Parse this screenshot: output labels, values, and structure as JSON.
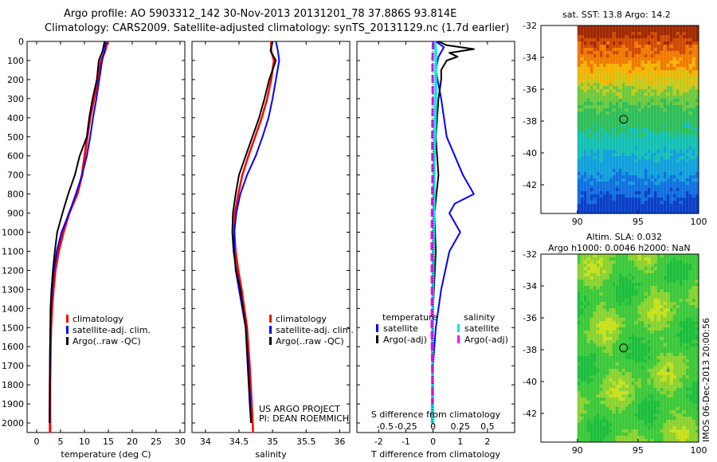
{
  "header": {
    "line1": "Argo profile: AO 5903312_142 30-Nov-2013 20131201_78 37.886S 93.814E",
    "line2": "Climatology: CARS2009. Satellite-adjusted climatology: synTS_20131129.nc (1.7d earlier)"
  },
  "credits": {
    "line1": "US ARGO PROJECT",
    "line2": "PI: DEAN ROEMMICH"
  },
  "side_stamp": "IMOS 06-Dec-2013 20:00:56",
  "map_sst": {
    "title": "sat. SST: 13.8 Argo: 14.2"
  },
  "map_sla": {
    "title1": "Altim. SLA: 0.032",
    "title2": "Argo h1000: 0.0046 h2000: NaN"
  },
  "legend_profile": [
    "climatology",
    "satellite-adj. clim.",
    "Argo(..raw -QC)"
  ],
  "legend_diff": {
    "temperature_heading": "temperature",
    "salinity_heading": "salinity",
    "items": [
      "satellite",
      "Argo(-adj)",
      "satellite",
      "Argo(-adj)"
    ]
  },
  "colors": {
    "climatology": "#ff0000",
    "satellite": "#0000ff",
    "argo": "#000000",
    "sal_satellite": "#00e5e5",
    "sal_argo": "#ff00ff"
  },
  "chart_data": [
    {
      "type": "line",
      "xlabel": "temperature (deg C)",
      "ylabel": "",
      "xlim": [
        -2,
        31
      ],
      "ylim": [
        2050,
        0
      ],
      "xticks": [
        "0",
        "5",
        "10",
        "15",
        "20",
        "25",
        "30"
      ],
      "yticks": [
        "0",
        "100",
        "200",
        "300",
        "400",
        "500",
        "600",
        "700",
        "800",
        "900",
        "1000",
        "1100",
        "1200",
        "1300",
        "1400",
        "1500",
        "1600",
        "1700",
        "1800",
        "1900",
        "2000"
      ],
      "series": [
        {
          "name": "climatology",
          "x": [
            14.8,
            14.3,
            13.5,
            12.8,
            12.0,
            11.2,
            10.6,
            9.5,
            8.5,
            6.8,
            5.6,
            4.6,
            3.9,
            3.5,
            3.2,
            3.0,
            2.9,
            2.8,
            2.8,
            2.8
          ],
          "y": [
            0,
            50,
            100,
            200,
            300,
            400,
            500,
            700,
            800,
            900,
            1000,
            1100,
            1200,
            1300,
            1400,
            1500,
            1600,
            1800,
            2000,
            2050
          ]
        },
        {
          "name": "satellite-adj. clim.",
          "x": [
            14.5,
            14.2,
            13.7,
            13.1,
            12.5,
            11.8,
            11.2,
            10.5,
            9.5,
            8.2,
            6.8,
            5.2,
            4.2,
            3.6,
            3.2,
            3.0,
            2.9,
            2.8,
            2.7
          ],
          "y": [
            0,
            50,
            100,
            200,
            300,
            400,
            500,
            600,
            700,
            800,
            900,
            1000,
            1100,
            1200,
            1300,
            1400,
            1500,
            1700,
            2000
          ]
        },
        {
          "name": "Argo(..raw -QC)",
          "x": [
            14.2,
            13.8,
            13.0,
            12.6,
            11.7,
            11.0,
            10.5,
            9.0,
            8.0,
            6.6,
            5.4,
            4.3,
            3.8,
            3.4,
            3.1,
            2.9,
            2.8,
            2.7
          ],
          "y": [
            0,
            50,
            100,
            200,
            300,
            400,
            500,
            600,
            700,
            800,
            900,
            1000,
            1100,
            1200,
            1300,
            1400,
            1600,
            2000
          ]
        }
      ]
    },
    {
      "type": "line",
      "xlabel": "salinity",
      "xlim": [
        33.8,
        36.15
      ],
      "ylim": [
        2050,
        0
      ],
      "xticks": [
        "34",
        "34.5",
        "35",
        "35.5",
        "36"
      ],
      "series": [
        {
          "name": "climatology",
          "x": [
            34.98,
            34.98,
            35.02,
            34.98,
            34.92,
            34.84,
            34.74,
            34.64,
            34.55,
            34.49,
            34.44,
            34.43,
            34.45,
            34.49,
            34.54,
            34.58,
            34.62,
            34.66,
            34.69,
            34.71
          ],
          "y": [
            0,
            50,
            100,
            200,
            300,
            400,
            500,
            600,
            700,
            800,
            900,
            1000,
            1100,
            1200,
            1300,
            1400,
            1500,
            1700,
            1900,
            2050
          ]
        },
        {
          "name": "satellite-adj. clim.",
          "x": [
            35.05,
            35.08,
            35.1,
            35.05,
            35.0,
            34.94,
            34.85,
            34.75,
            34.62,
            34.52,
            34.46,
            34.43,
            34.43,
            34.45,
            34.5,
            34.55,
            34.6,
            34.64,
            34.67,
            34.68
          ],
          "y": [
            0,
            50,
            100,
            200,
            300,
            400,
            500,
            600,
            700,
            800,
            900,
            1000,
            1100,
            1200,
            1300,
            1400,
            1500,
            1700,
            1900,
            2000
          ]
        },
        {
          "name": "Argo(..raw -QC)",
          "x": [
            35.0,
            34.97,
            35.05,
            34.95,
            34.88,
            34.8,
            34.7,
            34.6,
            34.5,
            34.45,
            34.41,
            34.4,
            34.42,
            34.46,
            34.52,
            34.56,
            34.6,
            34.63,
            34.66,
            34.68
          ],
          "y": [
            0,
            50,
            100,
            200,
            300,
            400,
            500,
            600,
            700,
            800,
            900,
            1000,
            1100,
            1200,
            1300,
            1400,
            1500,
            1700,
            1900,
            2000
          ]
        }
      ]
    },
    {
      "type": "line",
      "xlabel": "T difference from climatology",
      "xlabel_top": "S difference from climatology",
      "xlim": [
        -2.8,
        3.0
      ],
      "ylim": [
        2050,
        0
      ],
      "xticks": [
        "-2",
        "-1",
        "0",
        "1",
        "2"
      ],
      "xticks_top": [
        "-0.5",
        "-0.25",
        "0",
        "0.25",
        "0.5"
      ],
      "series": [
        {
          "name": "temperature satellite",
          "x": [
            0.1,
            0.4,
            0.2,
            0.1,
            0.3,
            0.5,
            0.8,
            1.1,
            1.5,
            0.8,
            0.6,
            1.0,
            0.6,
            0.3,
            0.1,
            0.0,
            -0.05,
            -0.05
          ],
          "y": [
            0,
            30,
            80,
            150,
            300,
            500,
            600,
            700,
            800,
            850,
            900,
            1000,
            1100,
            1300,
            1500,
            1700,
            1900,
            2000
          ]
        },
        {
          "name": "temperature Argo(-adj)",
          "x": [
            0.2,
            0.5,
            1.5,
            0.6,
            0.9,
            0.5,
            0.3,
            0.3,
            0.2,
            0.1,
            0.2,
            0.05,
            0.1,
            0.0,
            -0.05,
            0.0,
            -0.05
          ],
          "y": [
            0,
            20,
            40,
            60,
            80,
            100,
            150,
            200,
            300,
            500,
            700,
            900,
            1100,
            1400,
            1600,
            1800,
            2000
          ]
        },
        {
          "name": "salinity satellite",
          "x": [
            0.05,
            0.1,
            0.1,
            0.05,
            0.03,
            0.0,
            -0.02,
            -0.02,
            -0.02
          ],
          "y": [
            0,
            50,
            300,
            600,
            900,
            1200,
            1500,
            1800,
            2000
          ]
        },
        {
          "name": "salinity Argo(-adj)",
          "x": [
            0.0,
            -0.02,
            -0.01,
            -0.03,
            -0.02,
            -0.04,
            -0.05,
            -0.04,
            -0.05,
            -0.03,
            -0.02
          ],
          "y": [
            0,
            100,
            300,
            500,
            700,
            900,
            1100,
            1300,
            1500,
            1700,
            1900
          ]
        }
      ]
    },
    {
      "type": "heatmap",
      "title": "sat. SST: 13.8 Argo: 14.2",
      "xlim": [
        87,
        100
      ],
      "ylim": [
        -43.8,
        -32
      ],
      "xticks": [
        "90",
        "95",
        "100"
      ],
      "yticks": [
        "-32",
        "-34",
        "-36",
        "-38",
        "-40",
        "-42"
      ],
      "marker": {
        "x": 93.814,
        "y": -37.886
      },
      "data_extent_x": [
        90,
        100
      ]
    },
    {
      "type": "heatmap",
      "title": "Altim. SLA: 0.032 Argo h1000: 0.0046 h2000: NaN",
      "xlim": [
        87,
        100
      ],
      "ylim": [
        -43.8,
        -32
      ],
      "xticks": [
        "90",
        "95",
        "100"
      ],
      "yticks": [
        "-32",
        "-34",
        "-36",
        "-38",
        "-40",
        "-42"
      ],
      "marker": {
        "x": 93.814,
        "y": -37.886
      },
      "data_extent_x": [
        90,
        100
      ]
    }
  ]
}
